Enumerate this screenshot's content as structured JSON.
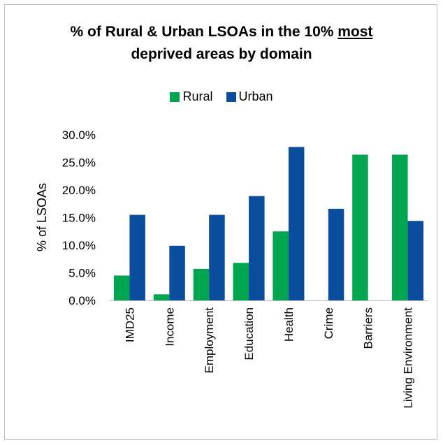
{
  "chart_data": {
    "type": "bar",
    "title_line1_pre": "% of Rural & Urban LSOAs in the 10% ",
    "title_line1_underlined": "most",
    "title_line2": "deprived areas by domain",
    "ylabel": "% of LSOAs",
    "ylim": [
      0,
      30
    ],
    "ytick_labels": [
      "0.0%",
      "5.0%",
      "10.0%",
      "15.0%",
      "20.0%",
      "25.0%",
      "30.0%"
    ],
    "yticks": [
      0,
      5,
      10,
      15,
      20,
      25,
      30
    ],
    "grid": false,
    "legend_position": "top",
    "categories": [
      "IMD25",
      "Income",
      "Employment",
      "Education",
      "Health",
      "Crime",
      "Barriers",
      "Living Environment"
    ],
    "series": [
      {
        "name": "Rural",
        "color": "#00a550",
        "values": [
          4.5,
          1.1,
          5.7,
          6.8,
          12.5,
          0.0,
          26.4,
          26.4
        ]
      },
      {
        "name": "Urban",
        "color": "#0a4d9c",
        "values": [
          15.5,
          9.9,
          15.5,
          18.9,
          27.8,
          16.6,
          0.0,
          14.4
        ]
      }
    ]
  }
}
